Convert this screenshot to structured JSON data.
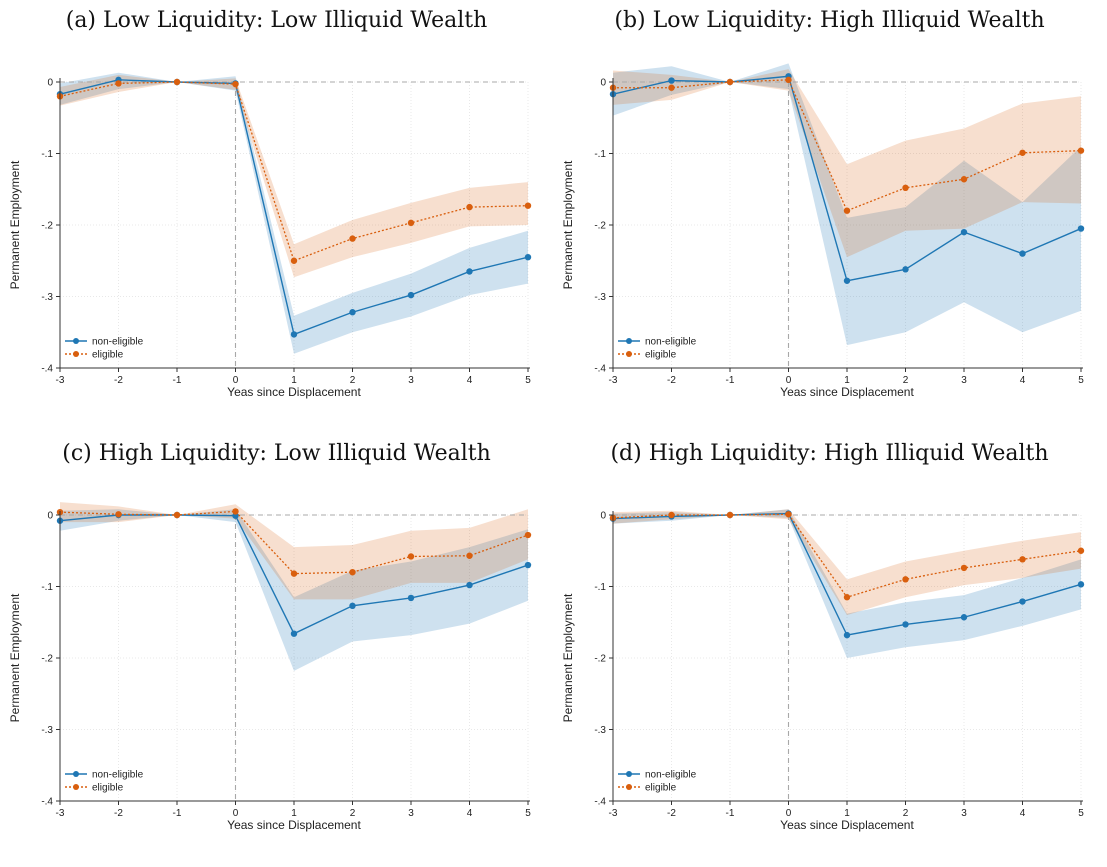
{
  "chart_data": [
    {
      "type": "line",
      "title": "(a) Low Liquidity: Low Illiquid Wealth",
      "xlabel": "Yeas since Displacement",
      "ylabel": "Permanent Employment",
      "x": [
        -3,
        -2,
        -1,
        0,
        1,
        2,
        3,
        4,
        5
      ],
      "xlim": [
        -3,
        5
      ],
      "ylim": [
        -0.4,
        0
      ],
      "xticks": [
        "-3",
        "-2",
        "-1",
        "0",
        "1",
        "2",
        "3",
        "4",
        "5"
      ],
      "yticks": [
        "0",
        "-.1",
        "-.2",
        "-.3",
        "-.4"
      ],
      "grid": true,
      "legend": "bottom-left",
      "series": [
        {
          "name": "non-eligible",
          "color": "#1f77b4",
          "style": "solid",
          "values": [
            -0.017,
            0.003,
            0.0,
            -0.002,
            -0.353,
            -0.322,
            -0.298,
            -0.265,
            -0.245
          ],
          "lower": [
            -0.032,
            -0.01,
            0.0,
            -0.012,
            -0.38,
            -0.35,
            -0.328,
            -0.298,
            -0.282
          ],
          "upper": [
            -0.002,
            0.013,
            0.0,
            0.008,
            -0.327,
            -0.295,
            -0.268,
            -0.232,
            -0.208
          ]
        },
        {
          "name": "eligible",
          "color": "#d95f0e",
          "style": "dotted",
          "values": [
            -0.02,
            -0.002,
            0.0,
            -0.003,
            -0.25,
            -0.219,
            -0.197,
            -0.175,
            -0.173
          ],
          "lower": [
            -0.033,
            -0.014,
            0.0,
            -0.011,
            -0.273,
            -0.245,
            -0.225,
            -0.202,
            -0.2
          ],
          "upper": [
            -0.007,
            0.01,
            0.0,
            0.005,
            -0.227,
            -0.193,
            -0.169,
            -0.148,
            -0.14
          ]
        }
      ]
    },
    {
      "type": "line",
      "title": "(b) Low Liquidity: High Illiquid Wealth",
      "xlabel": "Yeas since Displacement",
      "ylabel": "Permanent Employment",
      "x": [
        -3,
        -2,
        -1,
        0,
        1,
        2,
        3,
        4,
        5
      ],
      "xlim": [
        -3,
        5
      ],
      "ylim": [
        -0.4,
        0
      ],
      "xticks": [
        "-3",
        "-2",
        "-1",
        "0",
        "1",
        "2",
        "3",
        "4",
        "5"
      ],
      "yticks": [
        "0",
        "-.1",
        "-.2",
        "-.3",
        "-.4"
      ],
      "grid": true,
      "legend": "bottom-left",
      "series": [
        {
          "name": "non-eligible",
          "color": "#1f77b4",
          "style": "solid",
          "values": [
            -0.017,
            0.002,
            0.0,
            0.008,
            -0.278,
            -0.262,
            -0.21,
            -0.24,
            -0.205
          ],
          "lower": [
            -0.047,
            -0.018,
            0.0,
            -0.01,
            -0.368,
            -0.35,
            -0.308,
            -0.35,
            -0.32
          ],
          "upper": [
            0.013,
            0.022,
            0.0,
            0.026,
            -0.19,
            -0.175,
            -0.11,
            -0.168,
            -0.09
          ]
        },
        {
          "name": "eligible",
          "color": "#d95f0e",
          "style": "dotted",
          "values": [
            -0.008,
            -0.008,
            0.0,
            0.003,
            -0.18,
            -0.148,
            -0.136,
            -0.099,
            -0.096
          ],
          "lower": [
            -0.032,
            -0.025,
            0.0,
            -0.012,
            -0.245,
            -0.208,
            -0.205,
            -0.168,
            -0.17
          ],
          "upper": [
            0.016,
            0.01,
            0.0,
            0.018,
            -0.115,
            -0.082,
            -0.065,
            -0.03,
            -0.02
          ]
        }
      ]
    },
    {
      "type": "line",
      "title": "(c) High Liquidity: Low Illiquid Wealth",
      "xlabel": "Yeas since Displacement",
      "ylabel": "Permanent Employment",
      "x": [
        -3,
        -2,
        -1,
        0,
        1,
        2,
        3,
        4,
        5
      ],
      "xlim": [
        -3,
        5
      ],
      "ylim": [
        -0.4,
        0
      ],
      "xticks": [
        "-3",
        "-2",
        "-1",
        "0",
        "1",
        "2",
        "3",
        "4",
        "5"
      ],
      "yticks": [
        "0",
        "-.1",
        "-.2",
        "-.3",
        "-.4"
      ],
      "grid": true,
      "legend": "bottom-left",
      "series": [
        {
          "name": "non-eligible",
          "color": "#1f77b4",
          "style": "solid",
          "values": [
            -0.008,
            0.0,
            0.0,
            -0.001,
            -0.166,
            -0.127,
            -0.116,
            -0.098,
            -0.07
          ],
          "lower": [
            -0.022,
            -0.008,
            0.0,
            -0.01,
            -0.218,
            -0.177,
            -0.168,
            -0.152,
            -0.12
          ],
          "upper": [
            0.006,
            0.008,
            0.0,
            0.008,
            -0.115,
            -0.078,
            -0.065,
            -0.045,
            -0.02
          ]
        },
        {
          "name": "eligible",
          "color": "#d95f0e",
          "style": "dotted",
          "values": [
            0.004,
            0.001,
            0.0,
            0.005,
            -0.082,
            -0.08,
            -0.058,
            -0.057,
            -0.028
          ],
          "lower": [
            -0.01,
            -0.01,
            0.0,
            -0.005,
            -0.118,
            -0.118,
            -0.095,
            -0.095,
            -0.062
          ],
          "upper": [
            0.018,
            0.012,
            0.0,
            0.015,
            -0.045,
            -0.042,
            -0.022,
            -0.018,
            0.008
          ]
        }
      ]
    },
    {
      "type": "line",
      "title": "(d) High Liquidity: High Illiquid Wealth",
      "xlabel": "Yeas since Displacement",
      "ylabel": "Permanent Employment",
      "x": [
        -3,
        -2,
        -1,
        0,
        1,
        2,
        3,
        4,
        5
      ],
      "xlim": [
        -3,
        5
      ],
      "ylim": [
        -0.4,
        0
      ],
      "xticks": [
        "-3",
        "-2",
        "-1",
        "0",
        "1",
        "2",
        "3",
        "4",
        "5"
      ],
      "yticks": [
        "0",
        "-.1",
        "-.2",
        "-.3",
        "-.4"
      ],
      "grid": true,
      "legend": "bottom-left",
      "series": [
        {
          "name": "non-eligible",
          "color": "#1f77b4",
          "style": "solid",
          "values": [
            -0.005,
            -0.002,
            0.0,
            0.002,
            -0.168,
            -0.153,
            -0.143,
            -0.121,
            -0.097
          ],
          "lower": [
            -0.012,
            -0.008,
            0.0,
            -0.004,
            -0.2,
            -0.185,
            -0.175,
            -0.155,
            -0.132
          ],
          "upper": [
            0.002,
            0.004,
            0.0,
            0.008,
            -0.138,
            -0.122,
            -0.112,
            -0.088,
            -0.062
          ]
        },
        {
          "name": "eligible",
          "color": "#d95f0e",
          "style": "dotted",
          "values": [
            -0.004,
            0.0,
            0.0,
            0.001,
            -0.115,
            -0.09,
            -0.074,
            -0.062,
            -0.05
          ],
          "lower": [
            -0.012,
            -0.006,
            0.0,
            -0.006,
            -0.14,
            -0.115,
            -0.098,
            -0.088,
            -0.075
          ],
          "upper": [
            0.004,
            0.006,
            0.0,
            0.008,
            -0.09,
            -0.065,
            -0.05,
            -0.036,
            -0.024
          ]
        }
      ]
    }
  ]
}
